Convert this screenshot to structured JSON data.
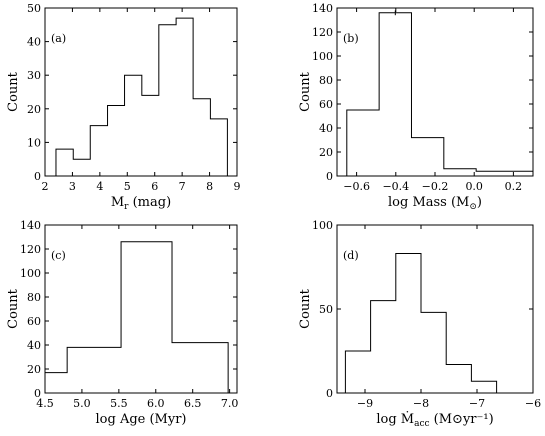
{
  "chart_data": [
    {
      "type": "histogram",
      "panel_label": "(a)",
      "xlabel_main": "M",
      "xlabel_sub": "r",
      "xlabel_rest": " (mag)",
      "ylabel": "Count",
      "xlim": [
        2,
        9
      ],
      "ylim": [
        0,
        50
      ],
      "xticks": [
        2,
        3,
        4,
        5,
        6,
        7,
        8,
        9
      ],
      "yticks": [
        0,
        10,
        20,
        30,
        40,
        50
      ],
      "bin_edges": [
        2.4,
        3.03,
        3.65,
        4.28,
        4.9,
        5.53,
        6.15,
        6.78,
        7.4,
        8.03,
        8.65
      ],
      "counts": [
        8,
        5,
        15,
        21,
        30,
        24,
        45,
        47,
        23,
        17
      ]
    },
    {
      "type": "histogram",
      "panel_label": "(b)",
      "xlabel_main": "log Mass (M",
      "xlabel_sub": "⊙",
      "xlabel_rest": ")",
      "ylabel": "Count",
      "xlim": [
        -0.7,
        0.3
      ],
      "ylim": [
        0,
        140
      ],
      "xticks": [
        -0.6,
        -0.4,
        -0.2,
        0.0,
        0.2
      ],
      "xtick_labels": [
        "−0.6",
        "−0.4",
        "−0.2",
        "0.0",
        "0.2"
      ],
      "yticks": [
        0,
        20,
        40,
        60,
        80,
        100,
        120,
        140
      ],
      "bin_edges": [
        -0.65,
        -0.485,
        -0.32,
        -0.155,
        0.01,
        0.3
      ],
      "counts": [
        55,
        136,
        32,
        6,
        4
      ]
    },
    {
      "type": "histogram",
      "panel_label": "(c)",
      "xlabel_main": "log Age (Myr)",
      "xlabel_sub": "",
      "xlabel_rest": "",
      "ylabel": "Count",
      "xlim": [
        4.5,
        7.1
      ],
      "ylim": [
        0,
        140
      ],
      "xticks": [
        4.5,
        5.0,
        5.5,
        6.0,
        6.5,
        7.0
      ],
      "xtick_labels": [
        "4.5",
        "5.0",
        "5.5",
        "6.0",
        "6.5",
        "7.0"
      ],
      "yticks": [
        0,
        20,
        40,
        60,
        80,
        100,
        120,
        140
      ],
      "bin_edges": [
        4.5,
        4.8,
        5.53,
        6.22,
        6.98
      ],
      "counts": [
        17,
        38,
        126,
        42
      ]
    },
    {
      "type": "histogram",
      "panel_label": "(d)",
      "xlabel_main": "log Ṁ",
      "xlabel_sub": "acc",
      "xlabel_rest": " (M⊙yr⁻¹)",
      "ylabel": "Count",
      "xlim": [
        -9.5,
        -6
      ],
      "ylim": [
        0,
        100
      ],
      "xticks": [
        -9,
        -8,
        -7,
        -6
      ],
      "xtick_labels": [
        "−9",
        "−8",
        "−7",
        "−6"
      ],
      "yticks": [
        0,
        50,
        100
      ],
      "bin_edges": [
        -9.35,
        -8.9,
        -8.45,
        -8.0,
        -7.55,
        -7.1,
        -6.65,
        -6.3
      ],
      "counts": [
        25,
        55,
        83,
        48,
        17,
        7,
        0
      ]
    }
  ]
}
